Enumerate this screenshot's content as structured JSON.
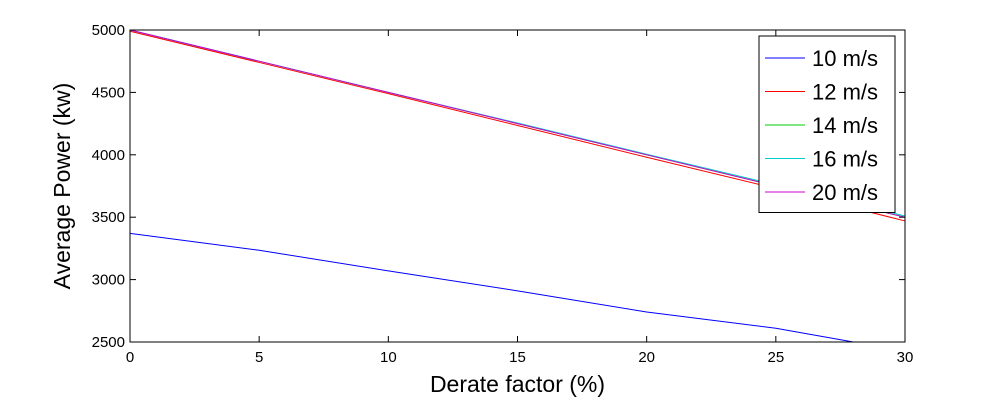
{
  "chart_data": {
    "type": "line",
    "xlabel": "Derate factor (%)",
    "ylabel": "Average Power (kw)",
    "xlim": [
      0,
      30
    ],
    "ylim": [
      2500,
      5000
    ],
    "x_ticks": [
      "0",
      "5",
      "10",
      "15",
      "20",
      "25",
      "30"
    ],
    "y_ticks": [
      "2500",
      "3000",
      "3500",
      "4000",
      "4500",
      "5000"
    ],
    "grid": false,
    "legend_position": "top-right",
    "series": [
      {
        "name": "10 m/s",
        "color": "#0000ff",
        "x": [
          0,
          5,
          10,
          15,
          20,
          25,
          28
        ],
        "y": [
          3370,
          3235,
          3070,
          2910,
          2740,
          2610,
          2500
        ]
      },
      {
        "name": "12 m/s",
        "color": "#ff0000",
        "x": [
          0,
          5,
          10,
          15,
          20,
          25,
          30
        ],
        "y": [
          4990,
          4740,
          4490,
          4235,
          3980,
          3730,
          3470
        ]
      },
      {
        "name": "14 m/s",
        "color": "#00cc00",
        "x": [
          0,
          5,
          10,
          15,
          20,
          25,
          30
        ],
        "y": [
          5000,
          4750,
          4500,
          4250,
          4000,
          3750,
          3500
        ]
      },
      {
        "name": "16 m/s",
        "color": "#00cccc",
        "x": [
          0,
          5,
          10,
          15,
          20,
          25,
          30
        ],
        "y": [
          5000,
          4750,
          4500,
          4255,
          4005,
          3760,
          3510
        ]
      },
      {
        "name": "20 m/s",
        "color": "#cc00cc",
        "x": [
          0,
          5,
          10,
          15,
          20,
          25,
          30
        ],
        "y": [
          5000,
          4750,
          4500,
          4250,
          4000,
          3750,
          3500
        ]
      }
    ]
  }
}
